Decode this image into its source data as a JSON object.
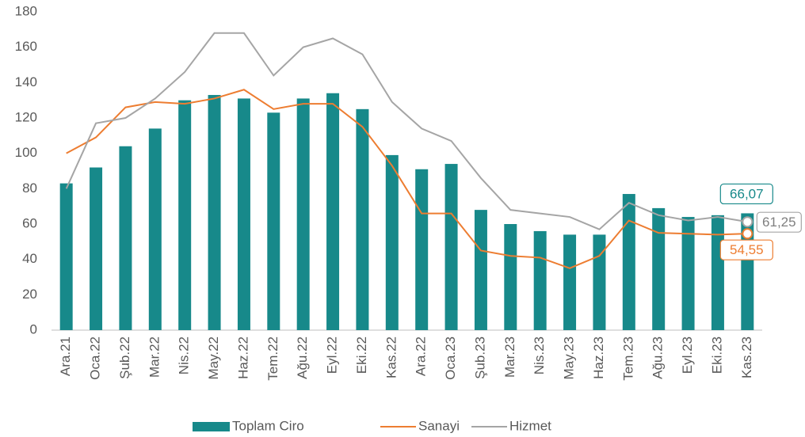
{
  "chart_data": {
    "type": "bar",
    "categories": [
      "Ara.21",
      "Oca.22",
      "Şub.22",
      "Mar.22",
      "Nis.22",
      "May.22",
      "Haz.22",
      "Tem.22",
      "Ağu.22",
      "Eyl.22",
      "Eki.22",
      "Kas.22",
      "Ara.22",
      "Oca.23",
      "Şub.23",
      "Mar.23",
      "Nis.23",
      "May.23",
      "Haz.23",
      "Tem.23",
      "Ağu.23",
      "Eyl.23",
      "Eki.23",
      "Kas.23"
    ],
    "series": [
      {
        "name": "Toplam Ciro",
        "type": "bar",
        "color": "#17898a",
        "values": [
          83,
          92,
          104,
          114,
          130,
          133,
          131,
          123,
          131,
          134,
          125,
          99,
          91,
          94,
          68,
          60,
          56,
          54,
          54,
          77,
          69,
          64,
          65,
          66.07
        ],
        "value_labels": [
          null,
          null,
          null,
          null,
          null,
          null,
          null,
          null,
          null,
          null,
          null,
          null,
          null,
          null,
          null,
          null,
          null,
          null,
          null,
          null,
          null,
          null,
          null,
          "66,07"
        ]
      },
      {
        "name": "Sanayi",
        "type": "line",
        "color": "#ed7d31",
        "values": [
          100,
          109,
          126,
          129,
          128,
          131,
          136,
          125,
          128,
          128,
          115,
          93,
          66,
          66,
          45,
          42,
          41,
          35,
          42,
          62,
          55,
          54.5,
          54,
          54.55
        ],
        "value_labels": [
          null,
          null,
          null,
          null,
          null,
          null,
          null,
          null,
          null,
          null,
          null,
          null,
          null,
          null,
          null,
          null,
          null,
          null,
          null,
          null,
          null,
          null,
          null,
          "54,55"
        ]
      },
      {
        "name": "Hizmet",
        "type": "line",
        "color": "#a5a5a5",
        "values": [
          80,
          117,
          120,
          131,
          146,
          168,
          168,
          144,
          160,
          165,
          156,
          129,
          114,
          107,
          86,
          68,
          66,
          64,
          57,
          72,
          65,
          62,
          64,
          61.25
        ],
        "value_labels": [
          null,
          null,
          null,
          null,
          null,
          null,
          null,
          null,
          null,
          null,
          null,
          null,
          null,
          null,
          null,
          null,
          null,
          null,
          null,
          null,
          null,
          null,
          null,
          "61,25"
        ]
      }
    ],
    "ylim": [
      0,
      180
    ],
    "yticks": [
      0,
      20,
      40,
      60,
      80,
      100,
      120,
      140,
      160,
      180
    ],
    "grid": false,
    "legend": "bottom"
  }
}
